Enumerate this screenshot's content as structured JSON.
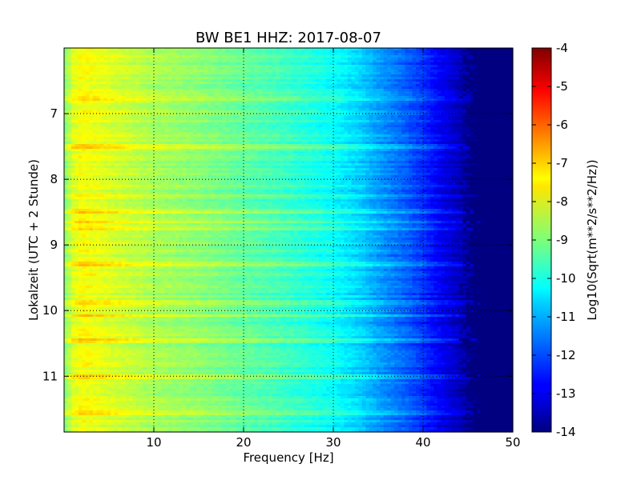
{
  "chart_data": {
    "type": "heatmap",
    "title": "BW BE1 HHZ: 2017-08-07",
    "xlabel": "Frequency [Hz]",
    "ylabel": "Lokalzeit (UTC + 2 Stunde)",
    "xlim": [
      0,
      50
    ],
    "ylim": [
      6.0,
      11.85
    ],
    "y_inverted": true,
    "x_ticks": [
      "10",
      "20",
      "30",
      "40",
      "50"
    ],
    "x_tick_values": [
      10,
      20,
      30,
      40,
      50
    ],
    "y_ticks": [
      "7",
      "8",
      "9",
      "10",
      "11"
    ],
    "y_tick_values": [
      7,
      8,
      9,
      10,
      11
    ],
    "grid": true,
    "colorbar": {
      "label": "Log10(Sqrt(m**2/s**2/Hz))",
      "colormap": "jet",
      "vmin": -14,
      "vmax": -4,
      "ticks": [
        "-4",
        "-5",
        "-6",
        "-7",
        "-8",
        "-9",
        "-10",
        "-11",
        "-12",
        "-13",
        "-14"
      ],
      "tick_values": [
        -4,
        -5,
        -6,
        -7,
        -8,
        -9,
        -10,
        -11,
        -12,
        -13,
        -14
      ]
    },
    "spectral_profile": {
      "frequency_hz": [
        0,
        1,
        2,
        3,
        5,
        8,
        10,
        15,
        20,
        25,
        30,
        33,
        35,
        38,
        40,
        42,
        44,
        46,
        50
      ],
      "log10_psd": [
        -9,
        -8.1,
        -7.8,
        -7.9,
        -8.1,
        -8.4,
        -8.6,
        -8.9,
        -9.3,
        -9.7,
        -10.2,
        -10.7,
        -11.2,
        -11.8,
        -12.3,
        -12.9,
        -13.4,
        -14,
        -14
      ]
    },
    "strong_bands_hours": [
      6.78,
      7.5,
      8.25,
      8.5,
      8.65,
      8.75,
      9.28,
      9.88,
      10.08,
      10.45,
      11.0,
      11.55
    ]
  }
}
